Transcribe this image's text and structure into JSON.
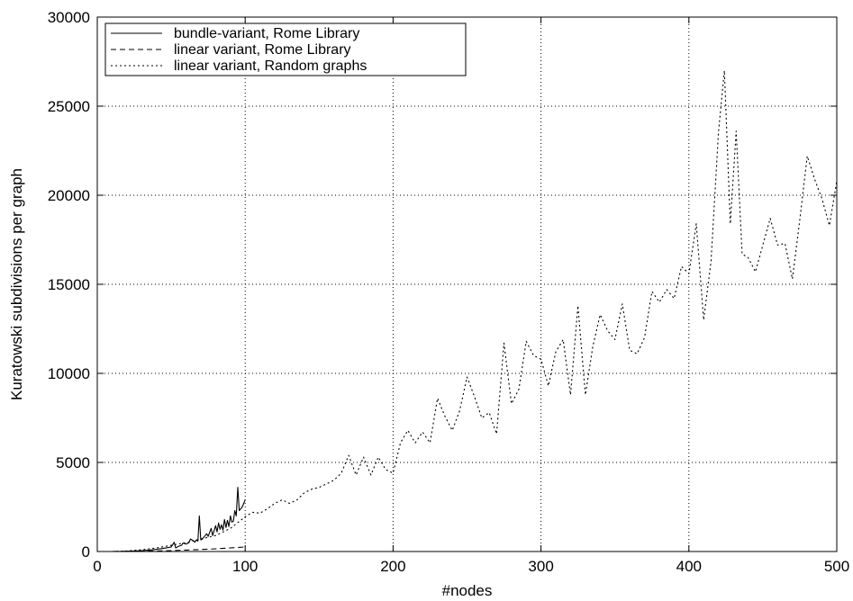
{
  "chart_data": {
    "type": "line",
    "title": "",
    "xlabel": "#nodes",
    "ylabel": "Kuratowski subdivisions per graph",
    "xlim": [
      0,
      500
    ],
    "ylim": [
      0,
      30000
    ],
    "x_ticks": [
      0,
      100,
      200,
      300,
      400,
      500
    ],
    "y_ticks": [
      0,
      5000,
      10000,
      15000,
      20000,
      25000,
      30000
    ],
    "grid": true,
    "legend_position": "top-left",
    "series": [
      {
        "name": "bundle-variant, Rome Library",
        "style": "solid",
        "points": [
          [
            10,
            0
          ],
          [
            15,
            5
          ],
          [
            20,
            15
          ],
          [
            25,
            30
          ],
          [
            30,
            50
          ],
          [
            35,
            80
          ],
          [
            40,
            120
          ],
          [
            45,
            180
          ],
          [
            48,
            220
          ],
          [
            50,
            260
          ],
          [
            52,
            520
          ],
          [
            53,
            200
          ],
          [
            55,
            300
          ],
          [
            57,
            350
          ],
          [
            58,
            480
          ],
          [
            60,
            420
          ],
          [
            62,
            500
          ],
          [
            63,
            700
          ],
          [
            65,
            600
          ],
          [
            66,
            520
          ],
          [
            67,
            650
          ],
          [
            68,
            580
          ],
          [
            69,
            2000
          ],
          [
            70,
            650
          ],
          [
            71,
            700
          ],
          [
            72,
            800
          ],
          [
            74,
            1000
          ],
          [
            75,
            850
          ],
          [
            77,
            1300
          ],
          [
            78,
            900
          ],
          [
            80,
            1450
          ],
          [
            81,
            1100
          ],
          [
            82,
            1600
          ],
          [
            83,
            1250
          ],
          [
            84,
            1500
          ],
          [
            85,
            1200
          ],
          [
            86,
            1800
          ],
          [
            87,
            1350
          ],
          [
            88,
            1750
          ],
          [
            89,
            1400
          ],
          [
            90,
            2000
          ],
          [
            91,
            1650
          ],
          [
            92,
            1700
          ],
          [
            93,
            2300
          ],
          [
            94,
            2000
          ],
          [
            95,
            3600
          ],
          [
            96,
            2300
          ],
          [
            98,
            2500
          ],
          [
            100,
            2900
          ]
        ]
      },
      {
        "name": "linear variant, Rome Library",
        "style": "dashed",
        "points": [
          [
            10,
            0
          ],
          [
            20,
            5
          ],
          [
            30,
            15
          ],
          [
            40,
            30
          ],
          [
            50,
            50
          ],
          [
            60,
            80
          ],
          [
            70,
            110
          ],
          [
            80,
            150
          ],
          [
            90,
            200
          ],
          [
            100,
            250
          ]
        ]
      },
      {
        "name": "linear variant, Random graphs",
        "style": "dotted",
        "points": [
          [
            10,
            0
          ],
          [
            20,
            30
          ],
          [
            30,
            100
          ],
          [
            40,
            200
          ],
          [
            50,
            350
          ],
          [
            60,
            500
          ],
          [
            70,
            700
          ],
          [
            80,
            900
          ],
          [
            90,
            1300
          ],
          [
            100,
            1950
          ],
          [
            105,
            2200
          ],
          [
            110,
            2150
          ],
          [
            115,
            2400
          ],
          [
            120,
            2700
          ],
          [
            125,
            2900
          ],
          [
            130,
            2700
          ],
          [
            135,
            2900
          ],
          [
            140,
            3300
          ],
          [
            145,
            3500
          ],
          [
            150,
            3600
          ],
          [
            155,
            3800
          ],
          [
            160,
            4000
          ],
          [
            165,
            4400
          ],
          [
            170,
            5400
          ],
          [
            175,
            4300
          ],
          [
            180,
            5300
          ],
          [
            185,
            4300
          ],
          [
            190,
            5300
          ],
          [
            195,
            4600
          ],
          [
            200,
            4400
          ],
          [
            205,
            6100
          ],
          [
            210,
            6800
          ],
          [
            215,
            6100
          ],
          [
            220,
            6700
          ],
          [
            225,
            6100
          ],
          [
            230,
            8600
          ],
          [
            235,
            7600
          ],
          [
            240,
            6800
          ],
          [
            245,
            7900
          ],
          [
            250,
            9800
          ],
          [
            255,
            8700
          ],
          [
            260,
            7500
          ],
          [
            265,
            7800
          ],
          [
            270,
            6600
          ],
          [
            275,
            11700
          ],
          [
            280,
            8300
          ],
          [
            285,
            9100
          ],
          [
            290,
            11800
          ],
          [
            295,
            11000
          ],
          [
            300,
            10800
          ],
          [
            305,
            9300
          ],
          [
            310,
            11200
          ],
          [
            315,
            11900
          ],
          [
            320,
            8800
          ],
          [
            325,
            13800
          ],
          [
            330,
            8800
          ],
          [
            335,
            11500
          ],
          [
            340,
            13300
          ],
          [
            345,
            12400
          ],
          [
            350,
            11900
          ],
          [
            355,
            13900
          ],
          [
            360,
            11300
          ],
          [
            365,
            11100
          ],
          [
            370,
            12000
          ],
          [
            375,
            14600
          ],
          [
            380,
            14000
          ],
          [
            385,
            14700
          ],
          [
            390,
            14200
          ],
          [
            395,
            16000
          ],
          [
            400,
            15600
          ],
          [
            405,
            18400
          ],
          [
            410,
            13000
          ],
          [
            415,
            16300
          ],
          [
            420,
            23500
          ],
          [
            424,
            27000
          ],
          [
            428,
            18400
          ],
          [
            432,
            23600
          ],
          [
            436,
            16700
          ],
          [
            440,
            16500
          ],
          [
            445,
            15700
          ],
          [
            450,
            17200
          ],
          [
            455,
            18700
          ],
          [
            460,
            17200
          ],
          [
            465,
            17300
          ],
          [
            470,
            15300
          ],
          [
            475,
            18600
          ],
          [
            480,
            22200
          ],
          [
            485,
            20900
          ],
          [
            490,
            19800
          ],
          [
            495,
            18300
          ],
          [
            500,
            20800
          ]
        ]
      }
    ]
  }
}
